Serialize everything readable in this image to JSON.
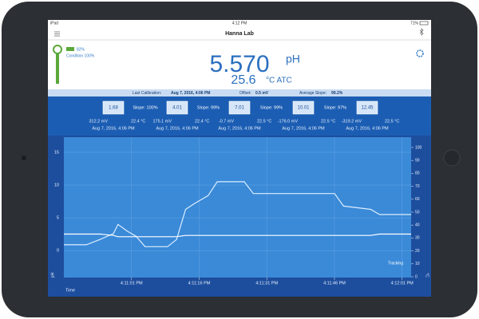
{
  "status_bar": {
    "carrier": "iPad",
    "time": "4:12 PM",
    "battery": "71%"
  },
  "header": {
    "title": "Hanna Lab"
  },
  "reading": {
    "electrode_battery": "82%",
    "condition": "Condition 100%",
    "value": "5.570",
    "unit": "pH",
    "temperature": "25.6",
    "temperature_unit": "°C ATC"
  },
  "calibration": {
    "last_label": "Last Calibration:",
    "last": "Aug 7, 2016, 4:06 PM",
    "offset_label": "Offset:",
    "offset": "0.5 mV",
    "slope_label": "Average Slope:",
    "slope": "99.2%"
  },
  "buffers": [
    {
      "value": "1.68",
      "mv": "312.2 mV",
      "temp": "22.4 °C",
      "date": "Aug 7, 2016, 4:06 PM"
    },
    {
      "value": "4.01",
      "mv": "175.1 mV",
      "temp": "22.4 °C",
      "date": "Aug 7, 2016, 4:06 PM"
    },
    {
      "value": "7.01",
      "mv": "-0.7 mV",
      "temp": "22.5 °C",
      "date": "Aug 7, 2016, 4:06 PM"
    },
    {
      "value": "10.01",
      "mv": "-176.0 mV",
      "temp": "22.5 °C",
      "date": "Aug 7, 2016, 4:06 PM"
    },
    {
      "value": "12.45",
      "mv": "-319.2 mV",
      "temp": "22.5 °C",
      "date": "Aug 7, 2016, 4:06 PM"
    }
  ],
  "slopes": [
    "Slope: 100%",
    "Slope: 99%",
    "Slope: 99%",
    "Slope: 97%"
  ],
  "chart_data": {
    "type": "line",
    "x_label": "Time",
    "y_label": "pH",
    "y2_label": "°C",
    "annotation": "Tracking",
    "x": [
      46,
      51,
      54,
      57,
      58,
      60,
      62,
      64,
      69,
      71,
      73,
      75,
      78,
      80,
      86,
      88,
      106,
      108,
      114,
      116,
      123
    ],
    "series": [
      {
        "color": "#dbeeff",
        "values": [
          0.9,
          0.9,
          1.7,
          2.6,
          4.0,
          3.0,
          2.2,
          0.6,
          0.6,
          1.7,
          6.3,
          7.2,
          8.4,
          10.5,
          10.5,
          8.7,
          8.7,
          6.8,
          6.3,
          5.5,
          5.5
        ]
      },
      {
        "color": "#ffffff",
        "axis": "y2",
        "values": [
          33,
          33,
          33,
          32,
          31,
          31,
          31,
          31,
          31,
          31,
          32,
          32,
          32,
          32,
          32,
          32,
          32,
          32,
          32,
          33,
          33
        ]
      }
    ],
    "xlim": [
      46,
      123
    ],
    "xticks": [
      {
        "value": 61,
        "label": "4:11:01 PM"
      },
      {
        "value": 76,
        "label": "4:11:16 PM"
      },
      {
        "value": 91,
        "label": "4:11:31 PM"
      },
      {
        "value": 106,
        "label": "4:11:46 PM"
      },
      {
        "value": 121,
        "label": "4:12:01 PM"
      }
    ],
    "ylim": [
      -4.1,
      17.3
    ],
    "yticks": [
      0,
      5,
      10,
      15
    ],
    "y2lim": [
      -0.6,
      108
    ],
    "y2ticks": [
      0,
      10,
      20,
      30,
      40,
      50,
      60,
      70,
      80,
      90,
      100
    ],
    "grid": true
  }
}
